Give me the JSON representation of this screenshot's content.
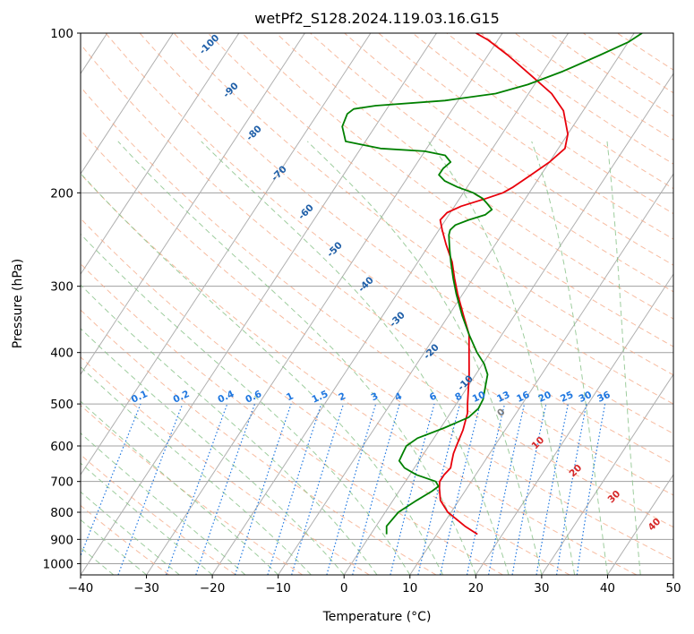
{
  "chart_data": {
    "type": "line",
    "title": "wetPf2_S128.2024.119.03.16.G15",
    "xlabel": "Temperature (°C)",
    "ylabel": "Pressure (hPa)",
    "xlim": [
      -40,
      50
    ],
    "ylim": [
      1050,
      100
    ],
    "y_scale": "log",
    "grid": true,
    "x_ticks": [
      -40,
      -30,
      -20,
      -10,
      0,
      10,
      20,
      30,
      40,
      50
    ],
    "x_tick_labels": [
      "−40",
      "−30",
      "−20",
      "−10",
      "0",
      "10",
      "20",
      "30",
      "40",
      "50"
    ],
    "y_ticks": [
      100,
      200,
      300,
      400,
      500,
      600,
      700,
      800,
      900,
      1000
    ],
    "y_tick_labels": [
      "100",
      "200",
      "300",
      "400",
      "500",
      "600",
      "700",
      "800",
      "900",
      "1000"
    ],
    "series": [
      {
        "color": "#e8000b",
        "points": [
          [
            880,
            16.2
          ],
          [
            850,
            13.5
          ],
          [
            800,
            9.5
          ],
          [
            760,
            7.2
          ],
          [
            720,
            5.8
          ],
          [
            700,
            5.2
          ],
          [
            680,
            5.2
          ],
          [
            660,
            5.5
          ],
          [
            640,
            5.0
          ],
          [
            620,
            4.5
          ],
          [
            600,
            4.2
          ],
          [
            560,
            3.6
          ],
          [
            520,
            2.6
          ],
          [
            500,
            1.7
          ],
          [
            470,
            0.4
          ],
          [
            440,
            -1.0
          ],
          [
            400,
            -3.2
          ],
          [
            370,
            -5.0
          ],
          [
            340,
            -7.8
          ],
          [
            310,
            -10.8
          ],
          [
            290,
            -12.8
          ],
          [
            270,
            -14.8
          ],
          [
            250,
            -17.5
          ],
          [
            235,
            -19.5
          ],
          [
            225,
            -20.8
          ],
          [
            218,
            -20.5
          ],
          [
            212,
            -19.0
          ],
          [
            205,
            -16.0
          ],
          [
            200,
            -14.0
          ],
          [
            195,
            -13.0
          ],
          [
            185,
            -11.5
          ],
          [
            175,
            -10.0
          ],
          [
            165,
            -9.0
          ],
          [
            155,
            -10.0
          ],
          [
            140,
            -13.0
          ],
          [
            130,
            -16.5
          ],
          [
            120,
            -21.5
          ],
          [
            110,
            -27.0
          ],
          [
            103,
            -31.5
          ],
          [
            100,
            -34.0
          ]
        ]
      },
      {
        "color": "#008000",
        "points": [
          [
            880,
            2.4
          ],
          [
            850,
            1.6
          ],
          [
            800,
            2.0
          ],
          [
            760,
            3.6
          ],
          [
            730,
            5.0
          ],
          [
            715,
            5.5
          ],
          [
            700,
            4.6
          ],
          [
            680,
            1.0
          ],
          [
            660,
            -1.5
          ],
          [
            640,
            -3.0
          ],
          [
            620,
            -3.2
          ],
          [
            600,
            -3.4
          ],
          [
            580,
            -2.5
          ],
          [
            555,
            0.5
          ],
          [
            530,
            3.2
          ],
          [
            510,
            3.8
          ],
          [
            490,
            3.6
          ],
          [
            470,
            2.9
          ],
          [
            440,
            1.8
          ],
          [
            420,
            0.2
          ],
          [
            400,
            -2.0
          ],
          [
            370,
            -5.0
          ],
          [
            340,
            -8.0
          ],
          [
            310,
            -11.0
          ],
          [
            290,
            -13.0
          ],
          [
            270,
            -15.0
          ],
          [
            255,
            -16.5
          ],
          [
            245,
            -17.5
          ],
          [
            240,
            -18.0
          ],
          [
            235,
            -18.3
          ],
          [
            230,
            -18.0
          ],
          [
            225,
            -16.5
          ],
          [
            220,
            -14.5
          ],
          [
            215,
            -14.0
          ],
          [
            210,
            -15.2
          ],
          [
            205,
            -16.5
          ],
          [
            200,
            -18.5
          ],
          [
            195,
            -21.5
          ],
          [
            190,
            -24.0
          ],
          [
            185,
            -25.5
          ],
          [
            180,
            -25.5
          ],
          [
            175,
            -25.0
          ],
          [
            170,
            -26.5
          ],
          [
            167,
            -30.0
          ],
          [
            165,
            -37.0
          ],
          [
            160,
            -43.0
          ],
          [
            150,
            -45.0
          ],
          [
            142,
            -45.5
          ],
          [
            139,
            -45.0
          ],
          [
            137,
            -42.0
          ],
          [
            134,
            -32.0
          ],
          [
            130,
            -25.0
          ],
          [
            125,
            -21.0
          ],
          [
            118,
            -17.0
          ],
          [
            110,
            -13.0
          ],
          [
            104,
            -10.0
          ],
          [
            100,
            -8.8
          ]
        ]
      }
    ],
    "dry_adiabat_labels": [
      "-100",
      "-90",
      "-80",
      "-70",
      "-60",
      "-50",
      "-40",
      "-30",
      "-20",
      "-10",
      "0",
      "10",
      "20",
      "30",
      "40"
    ],
    "mixing_ratio_labels": [
      "0.1",
      "0.2",
      "0.4",
      "0.6",
      "1",
      "1.5",
      "2",
      "3",
      "4",
      "6",
      "8",
      "10",
      "13",
      "16",
      "20",
      "25",
      "30",
      "36"
    ],
    "colors": {
      "isotherm": "#b0b0b0",
      "dry_adiabat": "#f4a582",
      "moist_adiabat": "#86c186",
      "mixing_ratio": "#1f77e0",
      "dry_adiabat_label_cold": "#1f5fa8",
      "dry_adiabat_label_warm": "#d62728",
      "dry_adiabat_label_zero": "#7f7f7f",
      "grid": "#a0a0a0"
    }
  }
}
